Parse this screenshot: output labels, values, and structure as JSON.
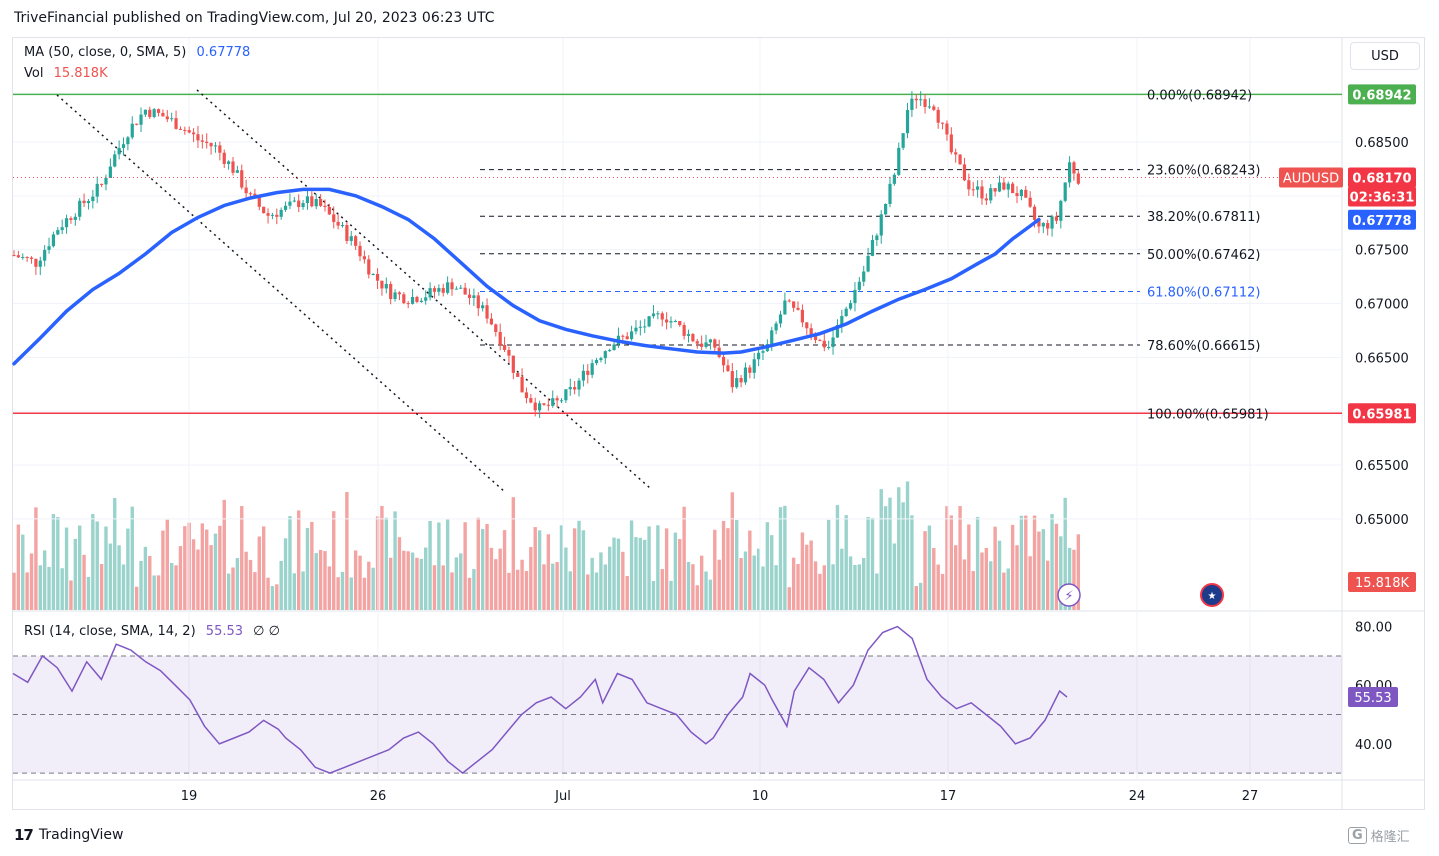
{
  "header": {
    "publisher": "TriveFinancial published on TradingView.com, Jul 20, 2023 06:23 UTC"
  },
  "currency_button": "USD",
  "legend": {
    "ma_label": "MA (50, close, 0, SMA, 5)",
    "ma_value": "0.67778",
    "vol_label": "Vol",
    "vol_value": "15.818K",
    "rsi_label": "RSI (14, close, SMA, 14, 2)",
    "rsi_value": "55.53",
    "rsi_extra": "∅  ∅"
  },
  "footer": {
    "brand": "TradingView",
    "watermark": "格隆汇"
  },
  "colors": {
    "up": "#26a69a",
    "down": "#ef5350",
    "ma": "#2962ff",
    "fib_top": "#4caf50",
    "fib_bottom": "#f23645",
    "rsi": "#7e57c2",
    "vol_up": "#9ad3cc",
    "vol_down": "#f3a3a1"
  },
  "chart_data": {
    "type": "candlestick",
    "symbol": "AUDUSD",
    "price_axis": {
      "ticks": [
        "0.68500",
        "0.68000",
        "0.67500",
        "0.67000",
        "0.66500",
        "0.66000",
        "0.65500",
        "0.65000"
      ],
      "range": [
        0.646,
        0.6915
      ]
    },
    "x_ticks": [
      "19",
      "26",
      "Jul",
      "10",
      "17",
      "24",
      "27"
    ],
    "fib_levels": [
      {
        "label": "0.00%(0.68942)",
        "price": 0.68942,
        "color": "#4caf50"
      },
      {
        "label": "23.60%(0.68243)",
        "price": 0.68243
      },
      {
        "label": "38.20%(0.67811)",
        "price": 0.67811
      },
      {
        "label": "50.00%(0.67462)",
        "price": 0.67462
      },
      {
        "label": "61.80%(0.67112)",
        "price": 0.67112,
        "color": "#2962ff"
      },
      {
        "label": "78.60%(0.66615)",
        "price": 0.66615
      },
      {
        "label": "100.00%(0.65981)",
        "price": 0.65981,
        "color": "#f23645"
      }
    ],
    "price_badges": [
      {
        "text": "0.68942",
        "price": 0.68942,
        "bg": "#4caf50"
      },
      {
        "text": "0.68170",
        "price": 0.6817,
        "bg": "#f23645"
      },
      {
        "text": "02:36:31",
        "price": 0.6817,
        "bg": "#f23645"
      },
      {
        "text": "0.67778",
        "price": 0.67778,
        "bg": "#2962ff"
      },
      {
        "text": "0.65981",
        "price": 0.65981,
        "bg": "#f23645"
      }
    ],
    "symbol_badge": "AUDUSD",
    "last_price": 0.6817,
    "volume_badge": "15.818K",
    "ma_series": [
      [
        0,
        0.6644
      ],
      [
        6,
        0.6668
      ],
      [
        12,
        0.6693
      ],
      [
        18,
        0.6713
      ],
      [
        24,
        0.6728
      ],
      [
        30,
        0.6746
      ],
      [
        36,
        0.6766
      ],
      [
        42,
        0.678
      ],
      [
        48,
        0.6791
      ],
      [
        54,
        0.6798
      ],
      [
        60,
        0.6803
      ],
      [
        66,
        0.6806
      ],
      [
        72,
        0.6806
      ],
      [
        78,
        0.68
      ],
      [
        84,
        0.679
      ],
      [
        90,
        0.6778
      ],
      [
        96,
        0.676
      ],
      [
        102,
        0.6738
      ],
      [
        108,
        0.6716
      ],
      [
        114,
        0.6698
      ],
      [
        120,
        0.6684
      ],
      [
        126,
        0.6676
      ],
      [
        132,
        0.667
      ],
      [
        138,
        0.6665
      ],
      [
        144,
        0.6661
      ],
      [
        150,
        0.6658
      ],
      [
        156,
        0.6655
      ],
      [
        162,
        0.6654
      ],
      [
        166,
        0.6655
      ],
      [
        172,
        0.666
      ],
      [
        178,
        0.6666
      ],
      [
        184,
        0.6672
      ],
      [
        190,
        0.6681
      ],
      [
        196,
        0.6693
      ],
      [
        202,
        0.6704
      ],
      [
        208,
        0.6713
      ],
      [
        214,
        0.6723
      ],
      [
        220,
        0.6737
      ],
      [
        224,
        0.6746
      ],
      [
        228,
        0.676
      ],
      [
        232,
        0.6772
      ],
      [
        234,
        0.6778
      ]
    ],
    "price_path": [
      [
        0,
        0.6745
      ],
      [
        5,
        0.6738
      ],
      [
        10,
        0.677
      ],
      [
        15,
        0.679
      ],
      [
        20,
        0.681
      ],
      [
        22,
        0.683
      ],
      [
        26,
        0.686
      ],
      [
        30,
        0.688
      ],
      [
        34,
        0.6874
      ],
      [
        38,
        0.6865
      ],
      [
        42,
        0.6852
      ],
      [
        46,
        0.6845
      ],
      [
        50,
        0.6825
      ],
      [
        54,
        0.6798
      ],
      [
        58,
        0.6782
      ],
      [
        62,
        0.6788
      ],
      [
        66,
        0.6796
      ],
      [
        70,
        0.679
      ],
      [
        74,
        0.6773
      ],
      [
        78,
        0.6754
      ],
      [
        82,
        0.6726
      ],
      [
        86,
        0.671
      ],
      [
        90,
        0.6705
      ],
      [
        94,
        0.6708
      ],
      [
        100,
        0.6718
      ],
      [
        104,
        0.6706
      ],
      [
        108,
        0.669
      ],
      [
        112,
        0.666
      ],
      [
        116,
        0.662
      ],
      [
        120,
        0.6602
      ],
      [
        124,
        0.6608
      ],
      [
        128,
        0.6622
      ],
      [
        132,
        0.6645
      ],
      [
        136,
        0.6662
      ],
      [
        140,
        0.667
      ],
      [
        144,
        0.668
      ],
      [
        148,
        0.669
      ],
      [
        152,
        0.6678
      ],
      [
        156,
        0.6664
      ],
      [
        160,
        0.666
      ],
      [
        164,
        0.6625
      ],
      [
        168,
        0.664
      ],
      [
        172,
        0.666
      ],
      [
        176,
        0.67
      ],
      [
        180,
        0.6685
      ],
      [
        184,
        0.6664
      ],
      [
        186,
        0.666
      ],
      [
        190,
        0.6695
      ],
      [
        194,
        0.673
      ],
      [
        198,
        0.678
      ],
      [
        201,
        0.682
      ],
      [
        204,
        0.688
      ],
      [
        206,
        0.6892
      ],
      [
        210,
        0.6885
      ],
      [
        214,
        0.684
      ],
      [
        218,
        0.681
      ],
      [
        222,
        0.68
      ],
      [
        226,
        0.681
      ],
      [
        230,
        0.68
      ],
      [
        234,
        0.677
      ],
      [
        238,
        0.6778
      ],
      [
        241,
        0.683
      ],
      [
        243,
        0.6817
      ]
    ],
    "rsi": {
      "ticks": [
        "80.00",
        "60.00",
        "40.00"
      ],
      "range": [
        28,
        85
      ],
      "band": [
        30,
        70
      ],
      "mid": 50,
      "series": [
        [
          0,
          64
        ],
        [
          4,
          61
        ],
        [
          8,
          70
        ],
        [
          12,
          66
        ],
        [
          16,
          58
        ],
        [
          20,
          68
        ],
        [
          24,
          62
        ],
        [
          28,
          74
        ],
        [
          32,
          72
        ],
        [
          36,
          68
        ],
        [
          40,
          65
        ],
        [
          44,
          60
        ],
        [
          48,
          55
        ],
        [
          52,
          46
        ],
        [
          56,
          40
        ],
        [
          60,
          42
        ],
        [
          64,
          44
        ],
        [
          68,
          48
        ],
        [
          72,
          45
        ],
        [
          74,
          42
        ],
        [
          78,
          38
        ],
        [
          82,
          32
        ],
        [
          86,
          30
        ],
        [
          90,
          32
        ],
        [
          94,
          34
        ],
        [
          98,
          36
        ],
        [
          102,
          38
        ],
        [
          106,
          42
        ],
        [
          110,
          44
        ],
        [
          114,
          40
        ],
        [
          118,
          34
        ],
        [
          122,
          30
        ],
        [
          126,
          34
        ],
        [
          130,
          38
        ],
        [
          134,
          44
        ],
        [
          138,
          50
        ],
        [
          142,
          54
        ],
        [
          146,
          56
        ],
        [
          150,
          52
        ],
        [
          154,
          56
        ],
        [
          158,
          62
        ],
        [
          160,
          54
        ],
        [
          164,
          64
        ],
        [
          168,
          62
        ],
        [
          172,
          54
        ],
        [
          176,
          52
        ],
        [
          180,
          50
        ],
        [
          184,
          44
        ],
        [
          188,
          40
        ],
        [
          190,
          42
        ],
        [
          194,
          50
        ],
        [
          198,
          56
        ],
        [
          200,
          64
        ],
        [
          204,
          60
        ],
        [
          206,
          55
        ],
        [
          210,
          46
        ],
        [
          212,
          58
        ],
        [
          216,
          66
        ],
        [
          220,
          62
        ],
        [
          224,
          54
        ],
        [
          228,
          60
        ],
        [
          232,
          72
        ],
        [
          236,
          78
        ],
        [
          240,
          80
        ],
        [
          244,
          76
        ],
        [
          248,
          62
        ],
        [
          252,
          56
        ],
        [
          256,
          52
        ],
        [
          260,
          54
        ],
        [
          264,
          50
        ],
        [
          268,
          46
        ],
        [
          272,
          40
        ],
        [
          276,
          42
        ],
        [
          280,
          48
        ],
        [
          284,
          58
        ],
        [
          286,
          56
        ]
      ]
    }
  }
}
